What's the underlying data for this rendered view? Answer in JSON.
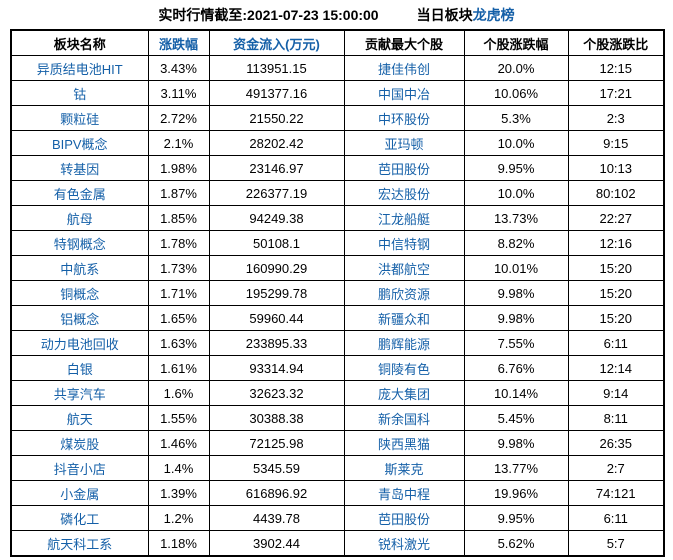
{
  "title": {
    "timestamp_label": "实时行情截至:2021-07-23 15:00:00",
    "board_label": "当日板块",
    "link_label": "龙虎榜"
  },
  "colors": {
    "accent_blue": "#1560a8",
    "border_black": "#000000",
    "background": "#ffffff"
  },
  "table": {
    "headers": [
      {
        "label": "板块名称",
        "blue": false
      },
      {
        "label": "涨跌幅",
        "blue": true
      },
      {
        "label": "资金流入(万元)",
        "blue": true
      },
      {
        "label": "贡献最大个股",
        "blue": false
      },
      {
        "label": "个股涨跌幅",
        "blue": false
      },
      {
        "label": "个股涨跌比",
        "blue": false
      }
    ],
    "rows": [
      [
        "异质结电池HIT",
        "3.43%",
        "113951.15",
        "捷佳伟创",
        "20.0%",
        "12:15"
      ],
      [
        "钴",
        "3.11%",
        "491377.16",
        "中国中冶",
        "10.06%",
        "17:21"
      ],
      [
        "颗粒硅",
        "2.72%",
        "21550.22",
        "中环股份",
        "5.3%",
        "2:3"
      ],
      [
        "BIPV概念",
        "2.1%",
        "28202.42",
        "亚玛顿",
        "10.0%",
        "9:15"
      ],
      [
        "转基因",
        "1.98%",
        "23146.97",
        "芭田股份",
        "9.95%",
        "10:13"
      ],
      [
        "有色金属",
        "1.87%",
        "226377.19",
        "宏达股份",
        "10.0%",
        "80:102"
      ],
      [
        "航母",
        "1.85%",
        "94249.38",
        "江龙船艇",
        "13.73%",
        "22:27"
      ],
      [
        "特钢概念",
        "1.78%",
        "50108.1",
        "中信特钢",
        "8.82%",
        "12:16"
      ],
      [
        "中航系",
        "1.73%",
        "160990.29",
        "洪都航空",
        "10.01%",
        "15:20"
      ],
      [
        "铜概念",
        "1.71%",
        "195299.78",
        "鹏欣资源",
        "9.98%",
        "15:20"
      ],
      [
        "铝概念",
        "1.65%",
        "59960.44",
        "新疆众和",
        "9.98%",
        "15:20"
      ],
      [
        "动力电池回收",
        "1.63%",
        "233895.33",
        "鹏辉能源",
        "7.55%",
        "6:11"
      ],
      [
        "白银",
        "1.61%",
        "93314.94",
        "铜陵有色",
        "6.76%",
        "12:14"
      ],
      [
        "共享汽车",
        "1.6%",
        "32623.32",
        "庞大集团",
        "10.14%",
        "9:14"
      ],
      [
        "航天",
        "1.55%",
        "30388.38",
        "新余国科",
        "5.45%",
        "8:11"
      ],
      [
        "煤炭股",
        "1.46%",
        "72125.98",
        "陕西黑猫",
        "9.98%",
        "26:35"
      ],
      [
        "抖音小店",
        "1.4%",
        "5345.59",
        "斯莱克",
        "13.77%",
        "2:7"
      ],
      [
        "小金属",
        "1.39%",
        "616896.92",
        "青岛中程",
        "19.96%",
        "74:121"
      ],
      [
        "磷化工",
        "1.2%",
        "4439.78",
        "芭田股份",
        "9.95%",
        "6:11"
      ],
      [
        "航天科工系",
        "1.18%",
        "3902.44",
        "锐科激光",
        "5.62%",
        "5:7"
      ]
    ]
  }
}
